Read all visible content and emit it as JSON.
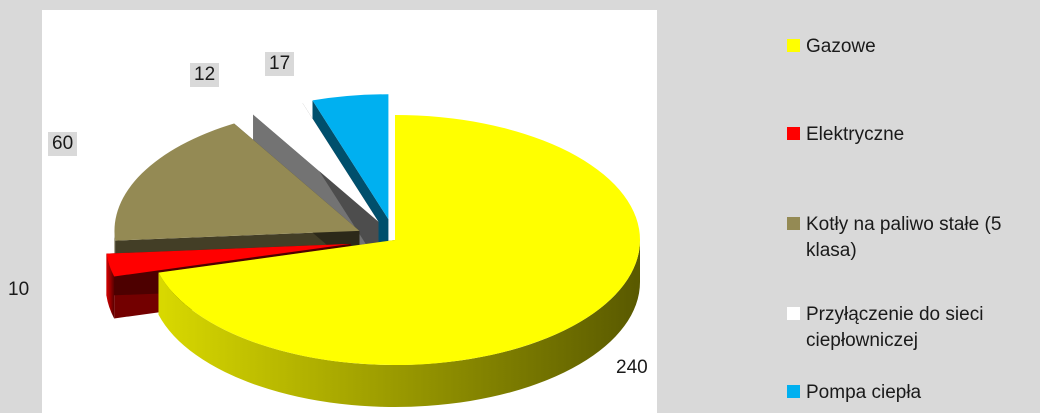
{
  "chart_data": {
    "type": "pie",
    "title": "",
    "categories": [
      "Gazowe",
      "Elektryczne",
      "Kotły na paliwo stałe (5 klasa)",
      "Przyłączenie do sieci ciepłowniczej",
      "Pompa ciepła"
    ],
    "values": [
      240,
      10,
      60,
      12,
      17
    ],
    "colors": [
      "#ffff00",
      "#ff0000",
      "#948a54",
      "#ffffff",
      "#00b0f0"
    ],
    "legend_position": "right",
    "exploded": true,
    "three_d": true
  }
}
